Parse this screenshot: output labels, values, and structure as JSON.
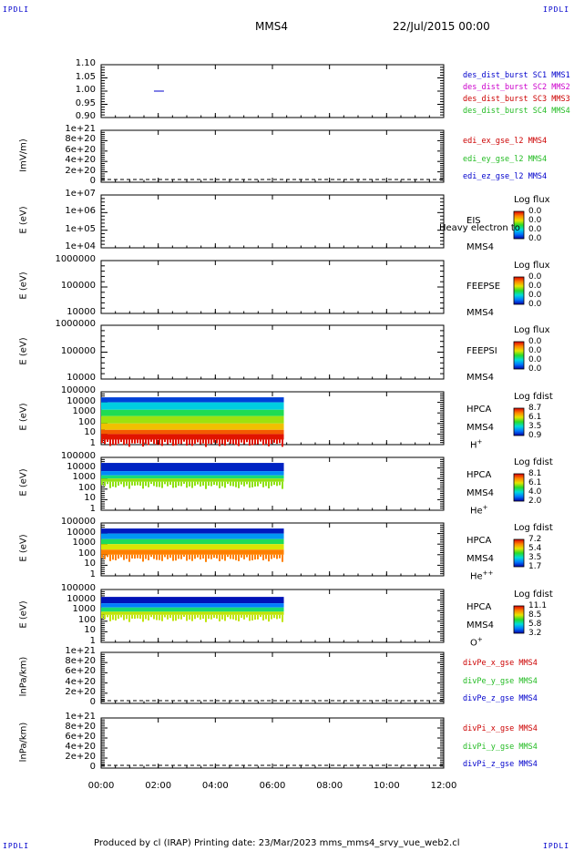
{
  "corners": {
    "tl": "IPDLI",
    "tr": "IPDLI",
    "bl": "IPDLI",
    "br": "IPDLI"
  },
  "header": {
    "spacecraft": "MMS4",
    "datetime": "22/Jul/2015 00:00"
  },
  "footer": "Produced by cl (IRAP)   Printing date: 23/Mar/2023   mms_mms4_srvy_vue_web2.cl",
  "x_ticks": [
    "00:00",
    "02:00",
    "04:00",
    "06:00",
    "08:00",
    "10:00",
    "12:00"
  ],
  "x_range_hours": [
    0,
    12
  ],
  "colors": {
    "red": "#cc0000",
    "green": "#22bb22",
    "blue": "#0000cc",
    "magenta": "#cc00cc"
  },
  "panels": [
    {
      "id": "bursts",
      "ylabel": "",
      "ticks": [
        "1.10",
        "1.05",
        "1.00",
        "0.95",
        "0.90"
      ],
      "legend": [
        {
          "text": "des_dist_burst SC1 MMS1",
          "color": "#0000cc"
        },
        {
          "text": "des_dist_burst SC2 MMS2",
          "color": "#cc00cc"
        },
        {
          "text": "des_dist_burst SC3 MMS3",
          "color": "#cc0000"
        },
        {
          "text": "des_dist_burst SC4 MMS4",
          "color": "#22bb22"
        }
      ]
    },
    {
      "id": "edi",
      "ylabel": "ImV/m)",
      "ticks": [
        "1e+21",
        "8e+20",
        "6e+20",
        "4e+20",
        "2e+20",
        "0"
      ],
      "legend": [
        {
          "text": "edi_ex_gse_l2 MMS4",
          "color": "#cc0000"
        },
        {
          "text": "edi_ey_gse_l2 MMS4",
          "color": "#22bb22"
        },
        {
          "text": "edi_ez_gse_l2 MMS4",
          "color": "#0000cc"
        }
      ]
    },
    {
      "id": "eis",
      "ylabel": "E (eV)",
      "ticks": [
        "1e+07",
        "1e+06",
        "1e+05",
        "1e+04"
      ],
      "labels": [
        "EIS",
        "MMS4"
      ],
      "overlay": "Heavy electron to",
      "cb": {
        "title": "Log flux",
        "values": [
          "0.0",
          "0.0",
          "0.0",
          "0.0"
        ]
      }
    },
    {
      "id": "feepse",
      "ylabel": "E (eV)",
      "ticks": [
        "1000000",
        "100000",
        "10000"
      ],
      "labels": [
        "FEEPSE",
        "MMS4"
      ],
      "cb": {
        "title": "Log flux",
        "values": [
          "0.0",
          "0.0",
          "0.0",
          "0.0"
        ]
      }
    },
    {
      "id": "feepsi",
      "ylabel": "E (eV)",
      "ticks": [
        "1000000",
        "100000",
        "10000"
      ],
      "labels": [
        "FEEPSI",
        "MMS4"
      ],
      "cb": {
        "title": "Log flux",
        "values": [
          "0.0",
          "0.0",
          "0.0",
          "0.0"
        ]
      }
    },
    {
      "id": "hpca_h",
      "ylabel": "E (eV)",
      "ticks": [
        "100000",
        "10000",
        "1000",
        "100",
        "10",
        "1"
      ],
      "labels": [
        "HPCA",
        "MMS4"
      ],
      "species": "H",
      "species_sup": "+",
      "cb": {
        "title": "Log fdist",
        "values": [
          "8.7",
          "6.1",
          "3.5",
          "0.9"
        ]
      }
    },
    {
      "id": "hpca_he",
      "ylabel": "E (eV)",
      "ticks": [
        "100000",
        "10000",
        "1000",
        "100",
        "10",
        "1"
      ],
      "labels": [
        "HPCA",
        "MMS4"
      ],
      "species": "He",
      "species_sup": "+",
      "cb": {
        "title": "Log fdist",
        "values": [
          "8.1",
          "6.1",
          "4.0",
          "2.0"
        ]
      }
    },
    {
      "id": "hpca_hepp",
      "ylabel": "E (eV)",
      "ticks": [
        "100000",
        "10000",
        "1000",
        "100",
        "10",
        "1"
      ],
      "labels": [
        "HPCA",
        "MMS4"
      ],
      "species": "He",
      "species_sup": "++",
      "cb": {
        "title": "Log fdist",
        "values": [
          "7.2",
          "5.4",
          "3.5",
          "1.7"
        ]
      }
    },
    {
      "id": "hpca_o",
      "ylabel": "E (eV)",
      "ticks": [
        "100000",
        "10000",
        "1000",
        "100",
        "10",
        "1"
      ],
      "labels": [
        "HPCA",
        "MMS4"
      ],
      "species": "O",
      "species_sup": "+",
      "cb": {
        "title": "Log fdist",
        "values": [
          "11.1",
          "8.5",
          "5.8",
          "3.2"
        ]
      }
    },
    {
      "id": "divpe",
      "ylabel": "lnPa/km)",
      "ticks": [
        "1e+21",
        "8e+20",
        "6e+20",
        "4e+20",
        "2e+20",
        "0"
      ],
      "legend": [
        {
          "text": "divPe_x_gse MMS4",
          "color": "#cc0000"
        },
        {
          "text": "divPe_y_gse MMS4",
          "color": "#22bb22"
        },
        {
          "text": "divPe_z_gse MMS4",
          "color": "#0000cc"
        }
      ]
    },
    {
      "id": "divpi",
      "ylabel": "lnPa/km)",
      "ticks": [
        "1e+21",
        "8e+20",
        "6e+20",
        "4e+20",
        "2e+20",
        "0"
      ],
      "legend": [
        {
          "text": "divPi_x_gse MMS4",
          "color": "#cc0000"
        },
        {
          "text": "divPi_y_gse MMS4",
          "color": "#22bb22"
        },
        {
          "text": "divPi_z_gse MMS4",
          "color": "#0000cc"
        }
      ]
    }
  ],
  "chart_data": {
    "type": "heatmap",
    "x_unit": "hours since 22/Jul/2015 00:00",
    "xlim": [
      0,
      12
    ],
    "series": [
      {
        "panel": "bursts",
        "type": "line",
        "x": [
          1.85,
          2.2
        ],
        "y": [
          1.0,
          1.0
        ],
        "color": "#0000cc"
      },
      {
        "panel": "hpca_h",
        "type": "heatmap",
        "x_start": 0.0,
        "x_end": 6.4,
        "bands": [
          {
            "e_lo": 10000,
            "e_hi": 30000,
            "level": 1.6
          },
          {
            "e_lo": 2000,
            "e_hi": 10000,
            "level": 3.3
          },
          {
            "e_lo": 500,
            "e_hi": 2000,
            "level": 4.5
          },
          {
            "e_lo": 100,
            "e_hi": 500,
            "level": 5.6
          },
          {
            "e_lo": 25,
            "e_hi": 100,
            "level": 6.6
          },
          {
            "e_lo": 10,
            "e_hi": 25,
            "level": 7.8
          },
          {
            "e_lo": 3,
            "e_hi": 10,
            "level": 8.5
          }
        ]
      },
      {
        "panel": "hpca_he",
        "type": "heatmap",
        "x_start": 0.0,
        "x_end": 6.4,
        "bands": [
          {
            "e_lo": 5000,
            "e_hi": 30000,
            "level": 2.3
          },
          {
            "e_lo": 2000,
            "e_hi": 5000,
            "level": 3.2
          },
          {
            "e_lo": 1000,
            "e_hi": 2000,
            "level": 4.6
          },
          {
            "e_lo": 500,
            "e_hi": 1000,
            "level": 5.6
          }
        ]
      },
      {
        "panel": "hpca_hepp",
        "type": "heatmap",
        "x_start": 0.0,
        "x_end": 6.4,
        "bands": [
          {
            "e_lo": 10000,
            "e_hi": 30000,
            "level": 1.9
          },
          {
            "e_lo": 3000,
            "e_hi": 10000,
            "level": 2.9
          },
          {
            "e_lo": 1000,
            "e_hi": 3000,
            "level": 4.2
          },
          {
            "e_lo": 300,
            "e_hi": 1000,
            "level": 5.3
          },
          {
            "e_lo": 100,
            "e_hi": 300,
            "level": 6.3
          }
        ]
      },
      {
        "panel": "hpca_o",
        "type": "heatmap",
        "x_start": 0.0,
        "x_end": 6.4,
        "bands": [
          {
            "e_lo": 5000,
            "e_hi": 20000,
            "level": 3.4
          },
          {
            "e_lo": 2000,
            "e_hi": 5000,
            "level": 4.6
          },
          {
            "e_lo": 800,
            "e_hi": 2000,
            "level": 6.6
          },
          {
            "e_lo": 400,
            "e_hi": 800,
            "level": 8.2
          }
        ]
      },
      {
        "panel": "edi",
        "type": "line",
        "style": "dashed",
        "y": 0
      },
      {
        "panel": "divpe",
        "type": "line",
        "style": "dashed",
        "y": 0
      },
      {
        "panel": "divpi",
        "type": "line",
        "style": "dashed",
        "y": 0
      }
    ]
  }
}
